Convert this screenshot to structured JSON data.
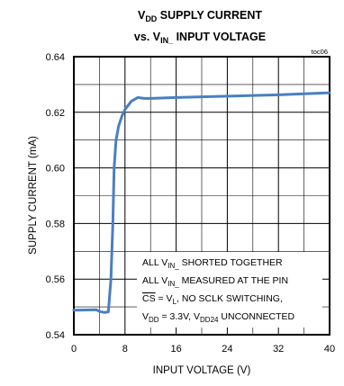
{
  "chart_data": {
    "type": "line",
    "title_line1": {
      "main": "V",
      "sub": "DD",
      "rest": " SUPPLY CURRENT"
    },
    "title_line2": {
      "pre": "vs. V",
      "sub": "IN_",
      "rest": " INPUT VOLTAGE"
    },
    "figure_id": "toc06",
    "xlabel": "INPUT VOLTAGE (V)",
    "ylabel": "SUPPLY CURRENT (mA)",
    "xlim": [
      0,
      40
    ],
    "ylim": [
      0.54,
      0.64
    ],
    "x_ticks": [
      0,
      8,
      16,
      24,
      32,
      40
    ],
    "y_ticks": [
      0.54,
      0.56,
      0.58,
      0.6,
      0.62,
      0.64
    ],
    "x_tick_labels": [
      "0",
      "8",
      "16",
      "24",
      "32",
      "40"
    ],
    "y_tick_labels": [
      "0.54",
      "0.56",
      "0.58",
      "0.60",
      "0.62",
      "0.64"
    ],
    "grid": true,
    "line_color": "#4a7fc1",
    "series": [
      {
        "x": [
          0,
          2,
          3.5,
          4,
          4.8,
          5.4,
          5.8,
          6.1,
          6.3,
          6.6,
          7.0,
          7.5,
          8.0,
          9.0,
          10.0,
          11.0,
          12.0,
          16.0,
          24.0,
          32.0,
          40.0
        ],
        "y": [
          0.5488,
          0.5489,
          0.549,
          0.5484,
          0.548,
          0.5482,
          0.56,
          0.58,
          0.6,
          0.61,
          0.615,
          0.6185,
          0.621,
          0.624,
          0.6253,
          0.625,
          0.625,
          0.6253,
          0.6258,
          0.6263,
          0.627
        ]
      }
    ],
    "annotations": [
      {
        "id": "a1",
        "pre": "ALL V",
        "sub": "IN_",
        "rest": " SHORTED TOGETHER"
      },
      {
        "id": "a2",
        "pre": "ALL V",
        "sub": "IN_",
        "rest": " MEASURED AT THE PIN"
      },
      {
        "id": "a3",
        "over": "CS",
        "mid": " = V",
        "sub": "L",
        "rest": ", NO SCLK SWITCHING,"
      },
      {
        "id": "a4",
        "pre": "V",
        "sub": "DD",
        "mid": " = 3.3V, V",
        "sub2": "DD24",
        "rest": " UNCONNECTED"
      }
    ]
  }
}
